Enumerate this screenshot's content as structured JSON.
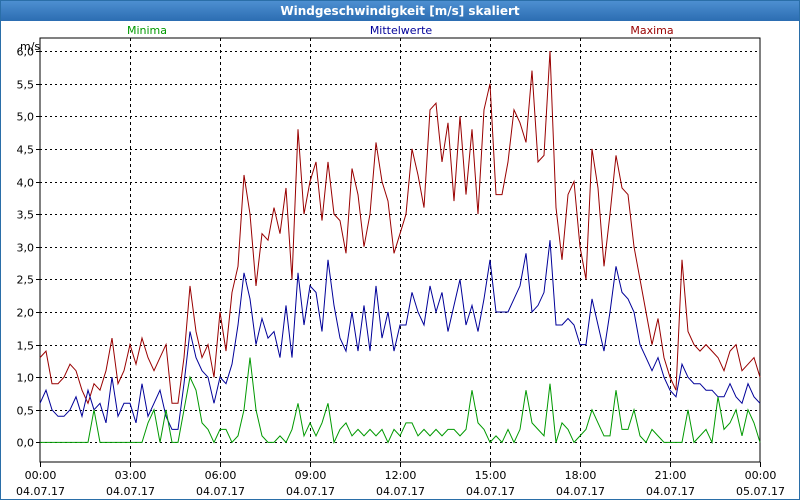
{
  "window": {
    "title": "Windgeschwindigkeit [m/s] skaliert"
  },
  "chart_data": {
    "type": "line",
    "title": "Windgeschwindigkeit [m/s] skaliert",
    "ylabel": "m/s",
    "xlabel": "",
    "ylim": [
      -0.3,
      6.2
    ],
    "xlim": [
      0,
      24
    ],
    "grid": true,
    "legend_placement": "top",
    "yticks": [
      "0,0",
      "0,5",
      "1,0",
      "1,5",
      "2,0",
      "2,5",
      "3,0",
      "3,5",
      "4,0",
      "4,5",
      "5,0",
      "5,5",
      "6,0"
    ],
    "ytick_values": [
      0,
      0.5,
      1,
      1.5,
      2,
      2.5,
      3,
      3.5,
      4,
      4.5,
      5,
      5.5,
      6
    ],
    "xticks": [
      {
        "time": "00:00",
        "date": "04.07.17"
      },
      {
        "time": "03:00",
        "date": "04.07.17"
      },
      {
        "time": "06:00",
        "date": "04.07.17"
      },
      {
        "time": "09:00",
        "date": "04.07.17"
      },
      {
        "time": "12:00",
        "date": "04.07.17"
      },
      {
        "time": "15:00",
        "date": "04.07.17"
      },
      {
        "time": "18:00",
        "date": "04.07.17"
      },
      {
        "time": "21:00",
        "date": "04.07.17"
      },
      {
        "time": "00:00",
        "date": "05.07.17"
      }
    ],
    "x_hours": [
      0,
      0.2,
      0.4,
      0.6,
      0.8,
      1.0,
      1.2,
      1.4,
      1.6,
      1.8,
      2.0,
      2.2,
      2.4,
      2.6,
      2.8,
      3.0,
      3.2,
      3.4,
      3.6,
      3.8,
      4.0,
      4.2,
      4.4,
      4.6,
      4.8,
      5.0,
      5.2,
      5.4,
      5.6,
      5.8,
      6.0,
      6.2,
      6.4,
      6.6,
      6.8,
      7.0,
      7.2,
      7.4,
      7.6,
      7.8,
      8.0,
      8.2,
      8.4,
      8.6,
      8.8,
      9.0,
      9.2,
      9.4,
      9.6,
      9.8,
      10.0,
      10.2,
      10.4,
      10.6,
      10.8,
      11.0,
      11.2,
      11.4,
      11.6,
      11.8,
      12.0,
      12.2,
      12.4,
      12.6,
      12.8,
      13.0,
      13.2,
      13.4,
      13.6,
      13.8,
      14.0,
      14.2,
      14.4,
      14.6,
      14.8,
      15.0,
      15.2,
      15.4,
      15.6,
      15.8,
      16.0,
      16.2,
      16.4,
      16.6,
      16.8,
      17.0,
      17.2,
      17.4,
      17.6,
      17.8,
      18.0,
      18.2,
      18.4,
      18.6,
      18.8,
      19.0,
      19.2,
      19.4,
      19.6,
      19.8,
      20.0,
      20.2,
      20.4,
      20.6,
      20.8,
      21.0,
      21.2,
      21.4,
      21.6,
      21.8,
      22.0,
      22.2,
      22.4,
      22.6,
      22.8,
      23.0,
      23.2,
      23.4,
      23.6,
      23.8,
      24.0
    ],
    "series": [
      {
        "name": "Maxima",
        "color": "#990000",
        "values": [
          1.3,
          1.4,
          0.9,
          0.9,
          1.0,
          1.2,
          1.1,
          0.8,
          0.6,
          0.9,
          0.8,
          1.1,
          1.6,
          0.9,
          1.1,
          1.5,
          1.2,
          1.6,
          1.3,
          1.1,
          1.3,
          1.5,
          0.6,
          0.6,
          1.3,
          2.4,
          1.7,
          1.3,
          1.5,
          1.0,
          2.0,
          1.4,
          2.3,
          2.7,
          4.1,
          3.5,
          2.4,
          3.2,
          3.1,
          3.6,
          3.2,
          3.9,
          2.5,
          4.8,
          3.5,
          4.0,
          4.3,
          3.4,
          4.3,
          3.5,
          3.4,
          2.9,
          4.2,
          3.8,
          3.0,
          3.5,
          4.6,
          4.0,
          3.7,
          2.9,
          3.2,
          3.5,
          4.5,
          4.1,
          3.6,
          5.1,
          5.2,
          4.3,
          4.9,
          3.7,
          5.0,
          3.8,
          4.8,
          3.5,
          5.1,
          5.5,
          3.8,
          3.8,
          4.3,
          5.1,
          4.9,
          4.6,
          5.7,
          4.3,
          4.4,
          6.0,
          3.6,
          2.8,
          3.8,
          4.0,
          3.0,
          2.5,
          4.5,
          3.9,
          2.7,
          3.5,
          4.4,
          3.9,
          3.8,
          3.0,
          2.5,
          2.0,
          1.5,
          1.9,
          1.3,
          1.0,
          0.8,
          2.8,
          1.7,
          1.5,
          1.4,
          1.5,
          1.4,
          1.3,
          1.1,
          1.4,
          1.5,
          1.1,
          1.2,
          1.3,
          1.0
        ]
      },
      {
        "name": "Mittelwerte",
        "color": "#000099",
        "values": [
          0.6,
          0.8,
          0.5,
          0.4,
          0.4,
          0.5,
          0.7,
          0.4,
          0.8,
          0.5,
          0.6,
          0.3,
          1.0,
          0.4,
          0.6,
          0.6,
          0.3,
          0.9,
          0.4,
          0.6,
          0.8,
          0.4,
          0.2,
          0.2,
          0.9,
          1.7,
          1.3,
          1.1,
          1.0,
          0.6,
          1.0,
          0.9,
          1.2,
          1.8,
          2.6,
          2.2,
          1.5,
          1.9,
          1.6,
          1.7,
          1.3,
          2.1,
          1.3,
          2.6,
          1.8,
          2.4,
          2.3,
          1.7,
          2.8,
          2.1,
          1.6,
          1.4,
          2.0,
          1.4,
          2.1,
          1.4,
          2.4,
          1.6,
          2.0,
          1.4,
          1.8,
          1.8,
          2.3,
          2.0,
          1.8,
          2.4,
          2.0,
          2.3,
          1.7,
          2.1,
          2.5,
          1.8,
          2.1,
          1.7,
          2.2,
          2.8,
          2.0,
          2.0,
          2.0,
          2.2,
          2.4,
          2.9,
          2.0,
          2.1,
          2.3,
          3.1,
          1.8,
          1.8,
          1.9,
          1.8,
          1.5,
          1.5,
          2.2,
          1.8,
          1.4,
          2.0,
          2.7,
          2.3,
          2.2,
          2.0,
          1.5,
          1.3,
          1.1,
          1.3,
          1.0,
          0.8,
          0.7,
          1.2,
          1.0,
          0.9,
          0.9,
          0.8,
          0.8,
          0.7,
          0.7,
          0.9,
          0.7,
          0.6,
          0.9,
          0.7,
          0.6
        ]
      },
      {
        "name": "Minima",
        "color": "#009900",
        "values": [
          0.0,
          0.0,
          0.0,
          0.0,
          0.0,
          0.0,
          0.0,
          0.0,
          0.0,
          0.5,
          0.0,
          0.0,
          0.0,
          0.0,
          0.0,
          0.0,
          0.0,
          0.0,
          0.3,
          0.5,
          0.0,
          0.5,
          0.0,
          0.0,
          0.5,
          1.0,
          0.8,
          0.3,
          0.2,
          0.0,
          0.2,
          0.2,
          0.0,
          0.1,
          0.5,
          1.3,
          0.5,
          0.1,
          0.0,
          0.0,
          0.1,
          0.0,
          0.2,
          0.6,
          0.1,
          0.3,
          0.1,
          0.3,
          0.6,
          0.0,
          0.2,
          0.3,
          0.1,
          0.2,
          0.1,
          0.2,
          0.1,
          0.2,
          0.0,
          0.2,
          0.1,
          0.3,
          0.3,
          0.1,
          0.2,
          0.1,
          0.2,
          0.1,
          0.2,
          0.2,
          0.1,
          0.2,
          0.8,
          0.3,
          0.2,
          0.0,
          0.1,
          0.0,
          0.2,
          0.0,
          0.2,
          0.8,
          0.3,
          0.2,
          0.1,
          0.9,
          0.0,
          0.3,
          0.2,
          0.0,
          0.1,
          0.2,
          0.5,
          0.3,
          0.1,
          0.1,
          0.8,
          0.2,
          0.2,
          0.5,
          0.1,
          0.0,
          0.2,
          0.1,
          0.0,
          0.0,
          0.0,
          0.0,
          0.5,
          0.0,
          0.1,
          0.2,
          0.0,
          0.7,
          0.2,
          0.3,
          0.5,
          0.1,
          0.5,
          0.3,
          0.0
        ]
      }
    ]
  }
}
